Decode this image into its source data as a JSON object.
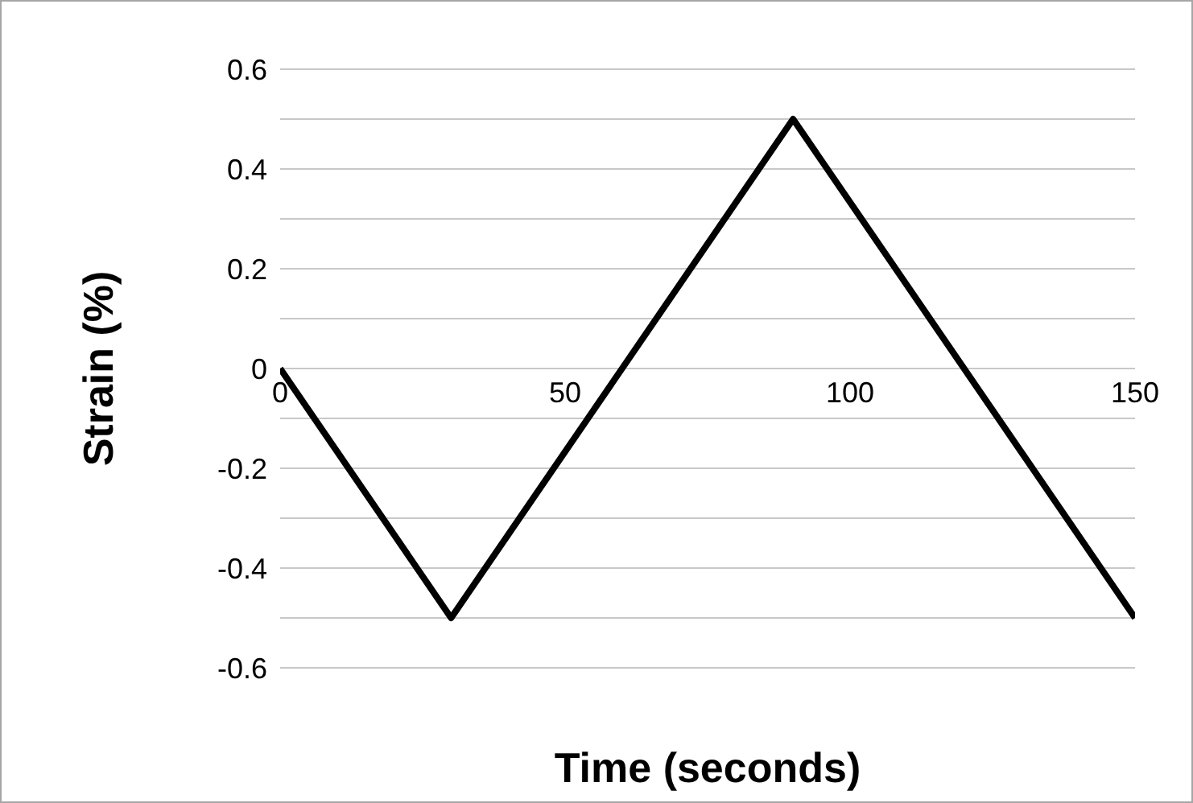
{
  "chart_data": {
    "type": "line",
    "xlabel": "Time (seconds)",
    "ylabel": "Strain (%)",
    "x": [
      0,
      30,
      90,
      150
    ],
    "series": [
      {
        "color": "#000000",
        "values": [
          0,
          -0.5,
          0.5,
          -0.5
        ]
      }
    ],
    "xlim": [
      0,
      150
    ],
    "xticks": [
      0,
      50,
      100,
      150
    ],
    "ylim": [
      -0.6,
      0.6
    ],
    "yticks": [
      -0.6,
      {
        "value": -0.5,
        "label": null
      },
      -0.4,
      {
        "value": -0.3,
        "label": null
      },
      -0.2,
      {
        "value": -0.1,
        "label": null
      },
      0,
      {
        "value": 0.1,
        "label": null
      },
      0.2,
      {
        "value": 0.3,
        "label": null
      },
      0.4,
      {
        "value": 0.5,
        "label": null
      },
      0.6
    ],
    "grid": "y",
    "legend": false,
    "marker": "none",
    "line_style": "solid"
  }
}
